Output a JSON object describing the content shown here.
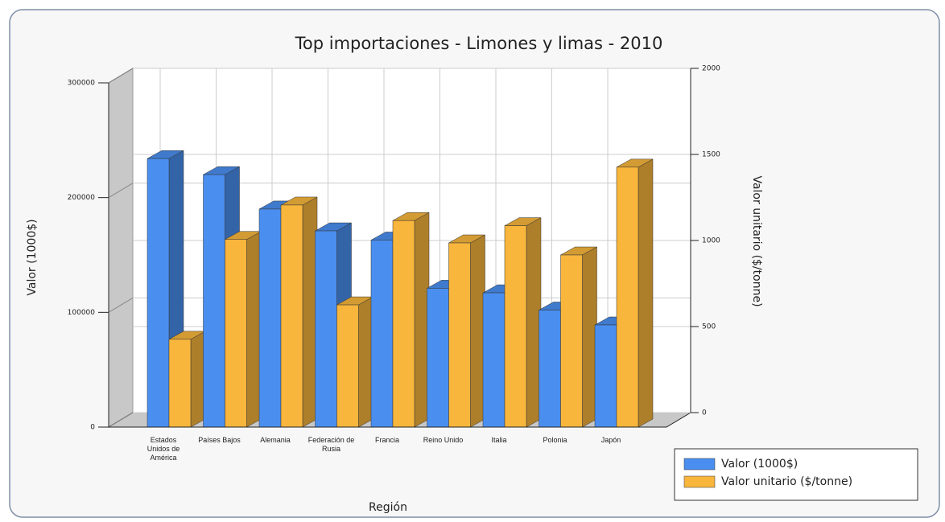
{
  "chart_data": {
    "type": "bar3d",
    "title": "Top importaciones - Limones y limas - 2010",
    "x_label": "Región",
    "y_label": "Valor (1000$)",
    "y2_label": "Valor unitario  ($/tonne)",
    "categories": [
      "Estados Unidos de América",
      "Países Bajos",
      "Alemania",
      "Federación de Rusia",
      "Francia",
      "Reino Unido",
      "Italia",
      "Polonia",
      "Japón"
    ],
    "series": [
      {
        "name": "Valor (1000$)",
        "color": "#4a8ff0",
        "values": [
          234000,
          220000,
          190000,
          171000,
          163000,
          121000,
          117000,
          102000,
          89000
        ]
      },
      {
        "name": "Valor unitario  ($/tonne)",
        "color": "#f8b63c",
        "axis": "y2",
        "values": [
          510,
          1090,
          1290,
          710,
          1200,
          1070,
          1170,
          1000,
          1510
        ]
      }
    ],
    "ylim": [
      0,
      300000
    ],
    "yticks": [
      0,
      100000,
      200000,
      300000
    ],
    "y2lim": [
      0,
      2000
    ],
    "y2ticks": [
      0,
      500,
      1000,
      1500,
      2000
    ],
    "grid": true,
    "legend": "bottom-right"
  }
}
